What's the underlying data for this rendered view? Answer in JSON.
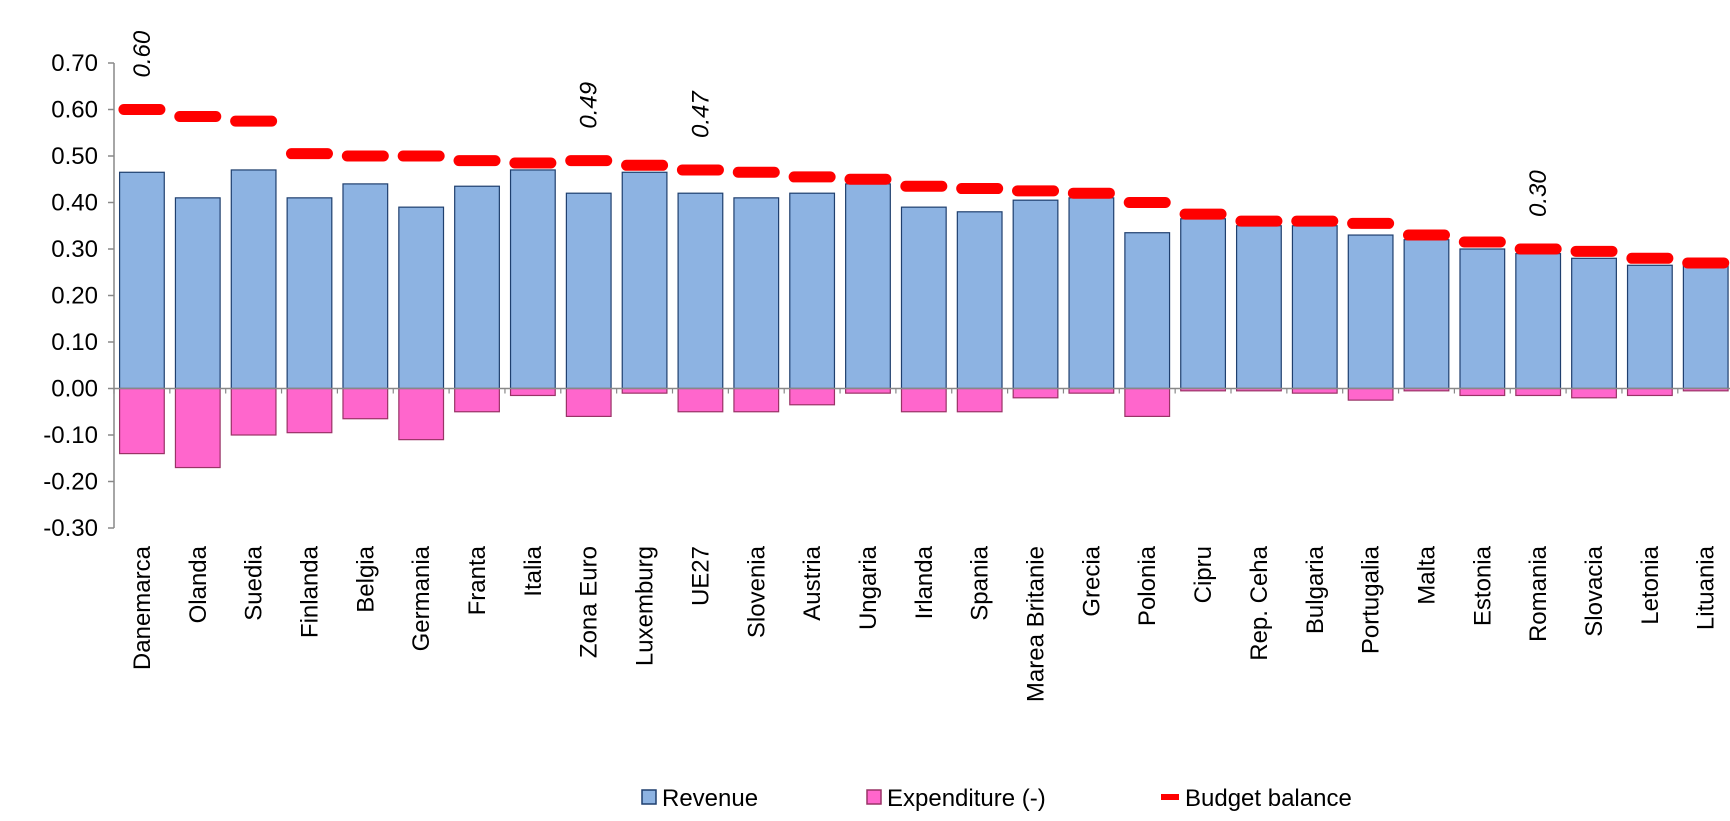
{
  "chart_data": {
    "type": "bar",
    "categories": [
      "Danemarca",
      "Olanda",
      "Suedia",
      "Finlanda",
      "Belgia",
      "Germania",
      "Franta",
      "Italia",
      "Zona Euro",
      "Luxemburg",
      "UE27",
      "Slovenia",
      "Austria",
      "Ungaria",
      "Irlanda",
      "Spania",
      "Marea Britanie",
      "Grecia",
      "Polonia",
      "Cipru",
      "Rep. Ceha",
      "Bulgaria",
      "Portugalia",
      "Malta",
      "Estonia",
      "Romania",
      "Slovacia",
      "Letonia",
      "Lituania"
    ],
    "series": [
      {
        "name": "Revenue",
        "color": "#8db3e2",
        "kind": "bar",
        "values": [
          0.465,
          0.41,
          0.47,
          0.41,
          0.44,
          0.39,
          0.435,
          0.47,
          0.42,
          0.465,
          0.42,
          0.41,
          0.42,
          0.44,
          0.39,
          0.38,
          0.405,
          0.41,
          0.335,
          0.365,
          0.35,
          0.35,
          0.33,
          0.32,
          0.3,
          0.29,
          0.28,
          0.265,
          0.265
        ]
      },
      {
        "name": "Expenditure (-)",
        "color": "#ff66cc",
        "kind": "bar",
        "values": [
          -0.14,
          -0.17,
          -0.1,
          -0.095,
          -0.065,
          -0.11,
          -0.05,
          -0.015,
          -0.06,
          -0.01,
          -0.05,
          -0.05,
          -0.035,
          -0.01,
          -0.05,
          -0.05,
          -0.02,
          -0.01,
          -0.06,
          -0.005,
          -0.005,
          -0.01,
          -0.025,
          -0.005,
          -0.015,
          -0.015,
          -0.02,
          -0.015,
          -0.005
        ]
      },
      {
        "name": "Budget balance",
        "color": "#ff0000",
        "kind": "dash",
        "values": [
          0.6,
          0.585,
          0.575,
          0.505,
          0.5,
          0.5,
          0.49,
          0.485,
          0.49,
          0.48,
          0.47,
          0.465,
          0.455,
          0.45,
          0.435,
          0.43,
          0.425,
          0.42,
          0.4,
          0.375,
          0.36,
          0.36,
          0.355,
          0.33,
          0.315,
          0.3,
          0.295,
          0.28,
          0.27
        ],
        "value_labels": [
          "0.60",
          null,
          null,
          null,
          null,
          null,
          null,
          null,
          "0.49",
          null,
          "0.47",
          null,
          null,
          null,
          null,
          null,
          null,
          null,
          null,
          null,
          null,
          null,
          null,
          null,
          null,
          "0.30",
          null,
          null,
          null
        ]
      }
    ],
    "ylim": [
      -0.3,
      0.7
    ],
    "yticks": [
      {
        "value": -0.3,
        "label": "-0.30"
      },
      {
        "value": -0.2,
        "label": "-0.20"
      },
      {
        "value": -0.1,
        "label": "-0.10"
      },
      {
        "value": 0,
        "label": "0.00"
      },
      {
        "value": 0.1,
        "label": "0.10"
      },
      {
        "value": 0.2,
        "label": "0.20"
      },
      {
        "value": 0.3,
        "label": "0.30"
      },
      {
        "value": 0.4,
        "label": "0.40"
      },
      {
        "value": 0.5,
        "label": "0.50"
      },
      {
        "value": 0.6,
        "label": "0.60"
      },
      {
        "value": 0.7,
        "label": "0.70"
      }
    ],
    "legend": "bottom"
  }
}
